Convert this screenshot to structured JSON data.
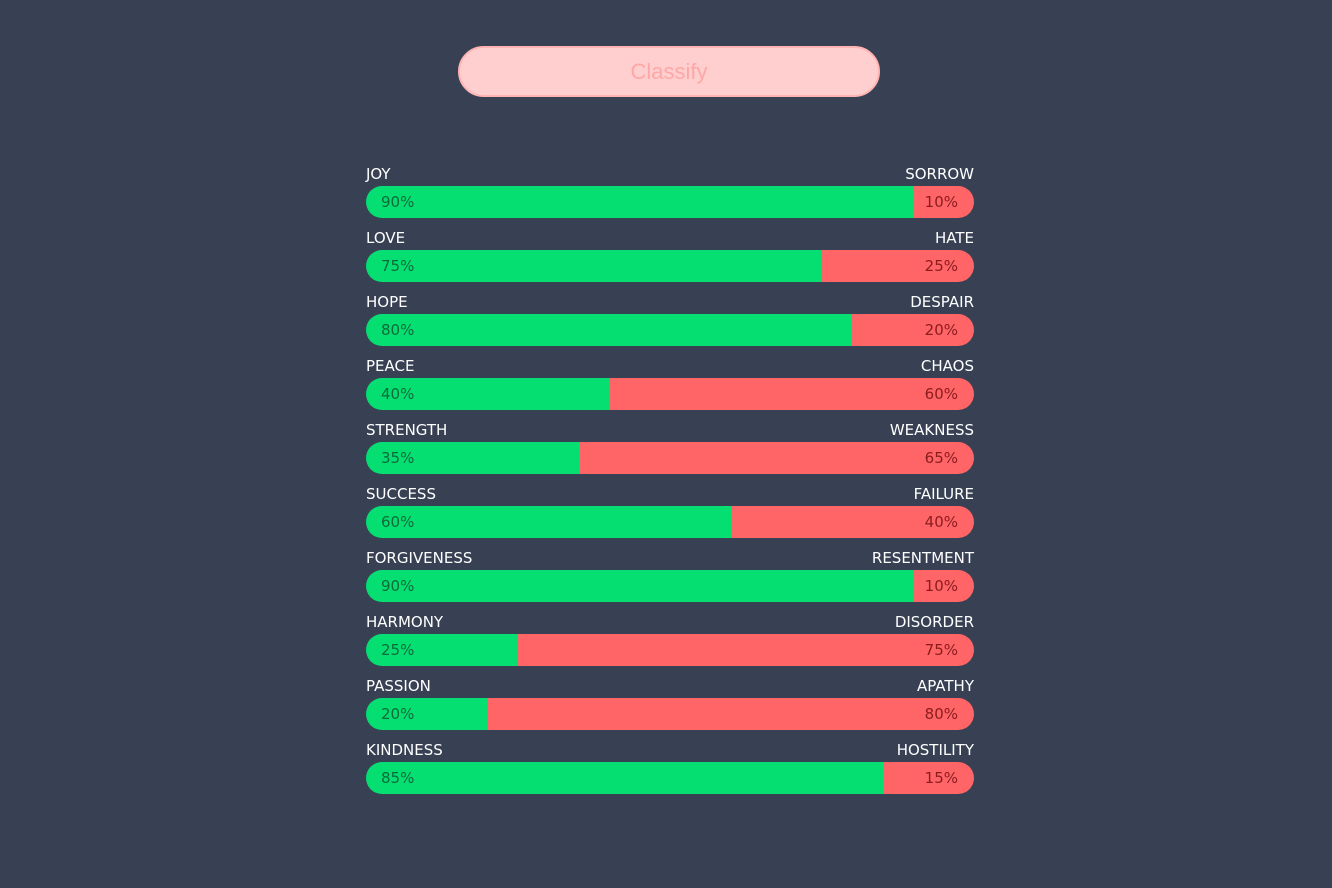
{
  "button": {
    "label": "Classify"
  },
  "colors": {
    "background": "#374153",
    "positive": "#05df72",
    "negative": "#ff6467",
    "button_bg": "#ffcfcf",
    "button_text": "#ffa7a7"
  },
  "rows": [
    {
      "left": "JOY",
      "right": "SORROW",
      "pos_value": 90,
      "neg_value": 10,
      "pos_label": "90%",
      "neg_label": "10%"
    },
    {
      "left": "LOVE",
      "right": "HATE",
      "pos_value": 75,
      "neg_value": 25,
      "pos_label": "75%",
      "neg_label": "25%"
    },
    {
      "left": "HOPE",
      "right": "DESPAIR",
      "pos_value": 80,
      "neg_value": 20,
      "pos_label": "80%",
      "neg_label": "20%"
    },
    {
      "left": "PEACE",
      "right": "CHAOS",
      "pos_value": 40,
      "neg_value": 60,
      "pos_label": "40%",
      "neg_label": "60%"
    },
    {
      "left": "STRENGTH",
      "right": "WEAKNESS",
      "pos_value": 35,
      "neg_value": 65,
      "pos_label": "35%",
      "neg_label": "65%"
    },
    {
      "left": "SUCCESS",
      "right": "FAILURE",
      "pos_value": 60,
      "neg_value": 40,
      "pos_label": "60%",
      "neg_label": "40%"
    },
    {
      "left": "FORGIVENESS",
      "right": "RESENTMENT",
      "pos_value": 90,
      "neg_value": 10,
      "pos_label": "90%",
      "neg_label": "10%"
    },
    {
      "left": "HARMONY",
      "right": "DISORDER",
      "pos_value": 25,
      "neg_value": 75,
      "pos_label": "25%",
      "neg_label": "75%"
    },
    {
      "left": "PASSION",
      "right": "APATHY",
      "pos_value": 20,
      "neg_value": 80,
      "pos_label": "20%",
      "neg_label": "80%"
    },
    {
      "left": "KINDNESS",
      "right": "HOSTILITY",
      "pos_value": 85,
      "neg_value": 15,
      "pos_label": "85%",
      "neg_label": "15%"
    }
  ]
}
